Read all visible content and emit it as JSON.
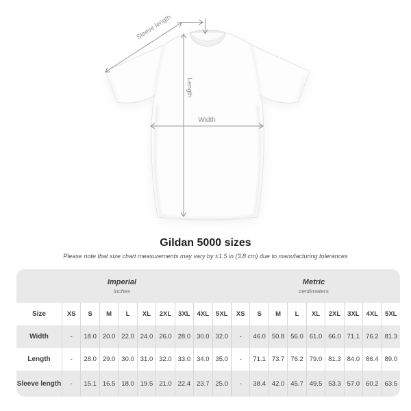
{
  "diagram": {
    "labels": {
      "sleeve_length": "Sleeve length",
      "length": "Length",
      "width": "Width"
    },
    "line_color": "#969696",
    "label_color": "#8d8d8d"
  },
  "title": "Gildan 5000 sizes",
  "subtitle": "Please note that size chart measurements may vary by ±1.5 in (3.8 cm) due to manufacturing tolerances",
  "chart_data": {
    "type": "table",
    "title": "Gildan 5000 sizes",
    "corner_header": "Size",
    "sections": [
      {
        "label": "Imperial",
        "sublabel": "inches"
      },
      {
        "label": "Metric",
        "sublabel": "centimeters"
      }
    ],
    "sizes": [
      "XS",
      "S",
      "M",
      "L",
      "XL",
      "2XL",
      "3XL",
      "4XL",
      "5XL"
    ],
    "rows": [
      {
        "label": "Width",
        "imperial": [
          "-",
          "18.0",
          "20.0",
          "22.0",
          "24.0",
          "26.0",
          "28.0",
          "30.0",
          "32.0"
        ],
        "metric": [
          "-",
          "46.0",
          "50.8",
          "56.0",
          "61.0",
          "66.0",
          "71.1",
          "76.2",
          "81.3"
        ]
      },
      {
        "label": "Length",
        "imperial": [
          "-",
          "28.0",
          "29.0",
          "30.0",
          "31.0",
          "32.0",
          "33.0",
          "34.0",
          "35.0"
        ],
        "metric": [
          "-",
          "71.1",
          "73.7",
          "76.2",
          "79.0",
          "81.3",
          "84.0",
          "86.4",
          "89.0"
        ]
      },
      {
        "label": "Sleeve length",
        "imperial": [
          "-",
          "15.1",
          "16.5",
          "18.0",
          "19.5",
          "21.0",
          "22.4",
          "23.7",
          "25.0"
        ],
        "metric": [
          "-",
          "38.4",
          "42.0",
          "45.7",
          "49.5",
          "53.3",
          "57.0",
          "60.2",
          "63.5"
        ]
      }
    ]
  },
  "colors": {
    "table_band": "#e9e9e9",
    "row_gray": "#e9e9e9",
    "row_white": "#ffffff",
    "separator": "#d8d8d8",
    "text": "#3d3d3d",
    "shirt_outline": "#e3e3e3"
  }
}
